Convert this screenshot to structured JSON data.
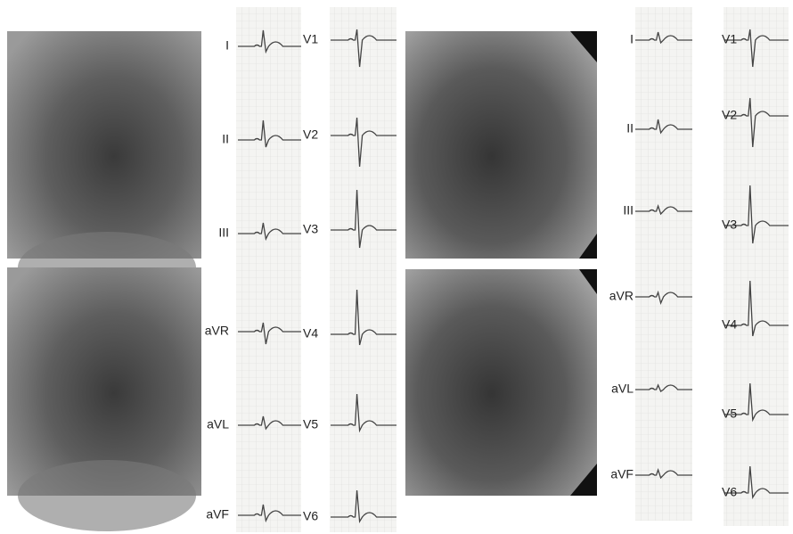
{
  "panels": [
    {
      "limb_leads": [
        "I",
        "II",
        "III",
        "aVR",
        "aVL",
        "aVF"
      ],
      "chest_leads": [
        "V1",
        "V2",
        "V3",
        "V4",
        "V5",
        "V6"
      ]
    },
    {
      "limb_leads": [
        "I",
        "II",
        "III",
        "aVR",
        "aVL",
        "aVF"
      ],
      "chest_leads": [
        "V1",
        "V2",
        "V3",
        "V4",
        "V5",
        "V6"
      ]
    }
  ]
}
